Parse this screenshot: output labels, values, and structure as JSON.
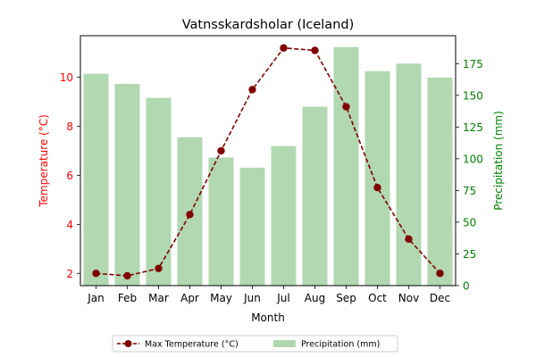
{
  "chart_data": {
    "type": "bar+line",
    "title": "Vatnsskardsholar (Iceland)",
    "xlabel": "Month",
    "categories": [
      "Jan",
      "Feb",
      "Mar",
      "Apr",
      "May",
      "Jun",
      "Jul",
      "Aug",
      "Sep",
      "Oct",
      "Nov",
      "Dec"
    ],
    "series": [
      {
        "name": "Max Temperature (°C)",
        "type": "line",
        "axis": "left",
        "color": "#800000",
        "values": [
          2.0,
          1.9,
          2.2,
          4.4,
          7.0,
          9.5,
          11.2,
          11.1,
          8.8,
          5.5,
          3.4,
          2.0
        ]
      },
      {
        "name": "Precipitation (mm)",
        "type": "bar",
        "axis": "right",
        "color": "#b1d8b1",
        "values": [
          167,
          159,
          148,
          117,
          101,
          93,
          110,
          141,
          188,
          169,
          175,
          164
        ]
      }
    ],
    "yleft": {
      "label": "Temperature (°C)",
      "color": "#ff0000",
      "lim": [
        1.5,
        11.7
      ],
      "ticks": [
        2,
        4,
        6,
        8,
        10
      ]
    },
    "yright": {
      "label": "Precipitation (mm)",
      "color": "#008000",
      "lim": [
        0,
        197
      ],
      "ticks": [
        0,
        25,
        50,
        75,
        100,
        125,
        150,
        175
      ]
    },
    "grid": false,
    "legend": "bottom-center"
  }
}
